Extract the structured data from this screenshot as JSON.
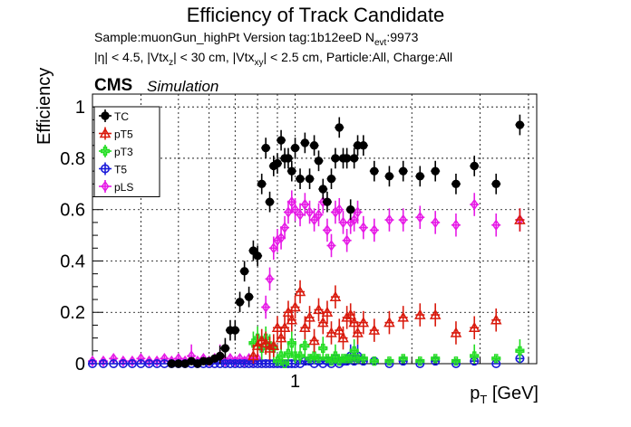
{
  "chart_data": {
    "type": "scatter",
    "title": "Efficiency of Track Candidate",
    "subtitle_line1": "Sample:muonGun_highPt   Version tag:1b12eeD  N",
    "subtitle_nevt_sub": "evt",
    "subtitle_nevt_val": ":9973",
    "subtitle_line2": "|η| < 4.5, |Vtx",
    "subtitle_line2_z": "z",
    "subtitle_line2_mid": "| < 30 cm, |Vtx",
    "subtitle_line2_xy": "xy",
    "subtitle_line2_end": "| < 2.5 cm, Particle:All, Charge:All",
    "cms_label": "CMS",
    "simulation_label": "Simulation",
    "xlabel_p": "p",
    "xlabel_sub": "T",
    "xlabel_unit": " [GeV]",
    "ylabel": "Efficiency",
    "x_scale": "log",
    "xlim": [
      0.3,
      4.2
    ],
    "ylim": [
      0,
      1.05
    ],
    "y_ticks": [
      "0",
      "0.2",
      "0.4",
      "0.6",
      "0.8",
      "1"
    ],
    "x_tick_labels": [
      {
        "value": 1,
        "label": "1"
      }
    ],
    "grid": true,
    "legend_position": "top-left",
    "series": [
      {
        "name": "TC",
        "color": "#000000",
        "marker": "filled-circle",
        "x": [
          0.48,
          0.5,
          0.52,
          0.54,
          0.56,
          0.58,
          0.6,
          0.62,
          0.64,
          0.66,
          0.68,
          0.7,
          0.72,
          0.74,
          0.76,
          0.78,
          0.8,
          0.82,
          0.84,
          0.86,
          0.88,
          0.9,
          0.92,
          0.94,
          0.96,
          0.98,
          1.0,
          1.03,
          1.06,
          1.09,
          1.12,
          1.15,
          1.18,
          1.21,
          1.24,
          1.27,
          1.3,
          1.33,
          1.36,
          1.39,
          1.42,
          1.45,
          1.5,
          1.6,
          1.75,
          1.9,
          2.1,
          2.3,
          2.6,
          2.9,
          3.3,
          3.8
        ],
        "y": [
          0.0,
          0.0,
          0.0,
          0.01,
          0.0,
          0.01,
          0.01,
          0.02,
          0.03,
          0.06,
          0.13,
          0.13,
          0.24,
          0.36,
          0.26,
          0.44,
          0.42,
          0.7,
          0.84,
          0.63,
          0.77,
          0.78,
          0.87,
          0.8,
          0.8,
          0.75,
          0.84,
          0.72,
          0.86,
          0.72,
          0.85,
          0.79,
          0.68,
          0.63,
          0.72,
          0.8,
          0.92,
          0.8,
          0.8,
          0.6,
          0.8,
          0.85,
          0.85,
          0.75,
          0.73,
          0.75,
          0.73,
          0.75,
          0.7,
          0.77,
          0.7,
          0.93
        ]
      },
      {
        "name": "pT5",
        "color": "#d91a0d",
        "marker": "open-triangle",
        "x": [
          0.78,
          0.8,
          0.82,
          0.84,
          0.86,
          0.88,
          0.9,
          0.92,
          0.94,
          0.96,
          0.98,
          1.0,
          1.03,
          1.06,
          1.09,
          1.12,
          1.15,
          1.18,
          1.21,
          1.24,
          1.27,
          1.3,
          1.33,
          1.36,
          1.39,
          1.42,
          1.45,
          1.5,
          1.6,
          1.75,
          1.9,
          2.1,
          2.3,
          2.6,
          2.9,
          3.3,
          3.8
        ],
        "y": [
          0.03,
          0.07,
          0.09,
          0.08,
          0.06,
          0.07,
          0.14,
          0.1,
          0.14,
          0.2,
          0.17,
          0.22,
          0.28,
          0.14,
          0.18,
          0.09,
          0.21,
          0.16,
          0.2,
          0.12,
          0.26,
          0.13,
          0.1,
          0.18,
          0.19,
          0.16,
          0.12,
          0.16,
          0.13,
          0.16,
          0.18,
          0.19,
          0.19,
          0.12,
          0.14,
          0.17,
          0.56
        ]
      },
      {
        "name": "pT3",
        "color": "#22dd22",
        "marker": "open-cross",
        "x": [
          0.78,
          0.8,
          0.82,
          0.84,
          0.86,
          0.88,
          0.9,
          0.92,
          0.94,
          0.96,
          0.98,
          1.0,
          1.03,
          1.06,
          1.09,
          1.12,
          1.15,
          1.18,
          1.21,
          1.24,
          1.27,
          1.3,
          1.33,
          1.36,
          1.39,
          1.42,
          1.45,
          1.5,
          1.6,
          1.75,
          1.9,
          2.1,
          2.3,
          2.6,
          2.9,
          3.3,
          3.8
        ],
        "y": [
          0.08,
          0.1,
          0.06,
          0.1,
          0.07,
          0.06,
          0.01,
          0.03,
          0.0,
          0.04,
          0.08,
          0.03,
          0.03,
          0.07,
          0.02,
          0.03,
          0.02,
          0.06,
          0.02,
          0.01,
          0.03,
          0.01,
          0.02,
          0.02,
          0.02,
          0.05,
          0.02,
          0.02,
          0.01,
          0.01,
          0.02,
          0.01,
          0.02,
          0.01,
          0.03,
          0.02,
          0.05
        ]
      },
      {
        "name": "T5",
        "color": "#1a1ad9",
        "marker": "open-circle",
        "x": [
          0.3,
          0.32,
          0.34,
          0.36,
          0.38,
          0.4,
          0.42,
          0.44,
          0.46,
          0.48,
          0.5,
          0.52,
          0.54,
          0.56,
          0.58,
          0.6,
          0.62,
          0.64,
          0.66,
          0.68,
          0.7,
          0.72,
          0.74,
          0.76,
          0.78,
          0.8,
          0.82,
          0.84,
          0.86,
          0.88,
          0.9,
          0.92,
          0.94,
          0.96,
          0.98,
          1.0,
          1.03,
          1.06,
          1.09,
          1.12,
          1.15,
          1.18,
          1.21,
          1.24,
          1.27,
          1.3,
          1.33,
          1.36,
          1.39,
          1.42,
          1.45,
          1.5,
          1.6,
          1.75,
          1.9,
          2.1,
          2.3,
          2.6,
          2.9,
          3.3,
          3.8
        ],
        "y": [
          0,
          0,
          0,
          0,
          0,
          0,
          0,
          0,
          0,
          0,
          0,
          0,
          0,
          0,
          0,
          0,
          0,
          0,
          0,
          0,
          0,
          0,
          0,
          0,
          0,
          0,
          0,
          0,
          0,
          0,
          0,
          0,
          0,
          0,
          0,
          0,
          0,
          0.01,
          0.01,
          0.0,
          0.01,
          0.0,
          0.01,
          0.0,
          0.02,
          0.0,
          0.01,
          0.01,
          0.03,
          0.01,
          0.03,
          0.01,
          0.01,
          0.0,
          0.01,
          0.0,
          0.01,
          0.0,
          0.01,
          0.0,
          0.02
        ]
      },
      {
        "name": "pLS",
        "color": "#e61ae6",
        "marker": "open-diamond",
        "x": [
          0.3,
          0.32,
          0.34,
          0.36,
          0.38,
          0.4,
          0.42,
          0.44,
          0.46,
          0.48,
          0.5,
          0.52,
          0.54,
          0.56,
          0.58,
          0.6,
          0.62,
          0.64,
          0.66,
          0.68,
          0.7,
          0.72,
          0.74,
          0.76,
          0.78,
          0.8,
          0.82,
          0.84,
          0.86,
          0.88,
          0.9,
          0.92,
          0.94,
          0.96,
          0.98,
          1.0,
          1.03,
          1.06,
          1.09,
          1.12,
          1.15,
          1.18,
          1.21,
          1.24,
          1.27,
          1.3,
          1.33,
          1.36,
          1.39,
          1.42,
          1.45,
          1.5,
          1.6,
          1.75,
          1.9,
          2.1,
          2.3,
          2.6,
          2.9,
          3.3,
          3.8
        ],
        "y": [
          0.01,
          0.01,
          0.02,
          0.01,
          0.01,
          0.02,
          0.01,
          0.01,
          0.02,
          0.01,
          0.02,
          0.01,
          0.03,
          0.01,
          0.02,
          0.01,
          0.02,
          0.03,
          0.01,
          0.02,
          0.01,
          0.02,
          0.01,
          0.02,
          0.01,
          0.02,
          0.06,
          0.22,
          0.33,
          0.45,
          0.48,
          0.49,
          0.53,
          0.59,
          0.63,
          0.6,
          0.58,
          0.62,
          0.59,
          0.56,
          0.58,
          0.63,
          0.52,
          0.46,
          0.59,
          0.6,
          0.55,
          0.48,
          0.55,
          0.56,
          0.59,
          0.53,
          0.52,
          0.56,
          0.56,
          0.57,
          0.55,
          0.54,
          0.62,
          0.54,
          0.56
        ]
      }
    ]
  }
}
